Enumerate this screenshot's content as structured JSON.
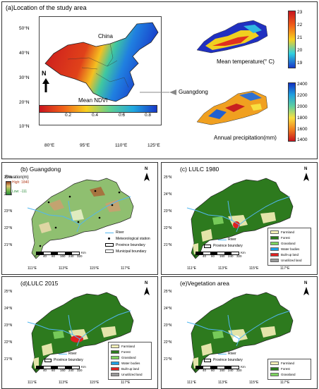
{
  "panel_a": {
    "title": "(a)Location of the study area",
    "country_label": "China",
    "guangdong_label": "Guangdong",
    "ndvi_legend_title": "Mean NDVI",
    "ndvi_ticks": [
      "0.2",
      "0.4",
      "0.6",
      "0.8"
    ],
    "temp_caption": "Mean temperature(° C)",
    "temp_ticks": [
      "23",
      "22",
      "21",
      "20",
      "19"
    ],
    "precip_caption": "Annual precipitation(mm)",
    "precip_ticks": [
      "2400",
      "2200",
      "2000",
      "1800",
      "1600",
      "1400"
    ],
    "lat_ticks": [
      "50°N",
      "40°N",
      "30°N",
      "20°N",
      "10°N"
    ],
    "lon_ticks": [
      "80°E",
      "95°E",
      "110°E",
      "125°E"
    ],
    "north": "N"
  },
  "panel_b": {
    "title": "(b) Guangdong",
    "elevation_title": "Elevation(m)",
    "high": "High: 1840",
    "low": "Low: -111",
    "legend": [
      "River",
      "Meteorological station",
      "Province boundary",
      "Municipal boundary"
    ]
  },
  "panel_c": {
    "title": "(c) LULC 1980",
    "legend": [
      "River",
      "Province boundary"
    ],
    "classes": [
      "Farmland",
      "Forest",
      "Grassland",
      "Water bodies",
      "Built-up land",
      "Unutilized land"
    ]
  },
  "panel_d": {
    "title": "(d)LULC 2015",
    "legend": [
      "River",
      "Province boundary"
    ],
    "classes": [
      "Farmland",
      "Forest",
      "Grassland",
      "Water bodies",
      "Built-up land",
      "Unutilized land"
    ]
  },
  "panel_e": {
    "title": "(e)Vegetation area",
    "legend": [
      "River",
      "Province boundary"
    ],
    "classes": [
      "Farmland",
      "Forest",
      "Grassland"
    ]
  },
  "gd_lat_ticks": [
    "25°N",
    "24°N",
    "23°N",
    "22°N",
    "21°N"
  ],
  "gd_lon_ticks": [
    "111°E",
    "113°E",
    "115°E",
    "117°E"
  ],
  "scalebar_ticks": [
    "0",
    "40",
    "80",
    "160",
    "240",
    "320"
  ],
  "scalebar_unit": "Km",
  "north": "N",
  "colors": {
    "farmland": "#f7f0b8",
    "forest": "#2d7a1e",
    "grassland": "#7ed35f",
    "water": "#1ea0e6",
    "builtup": "#e02020",
    "unutilized": "#9a9a9a",
    "river": "#52b7f0"
  }
}
